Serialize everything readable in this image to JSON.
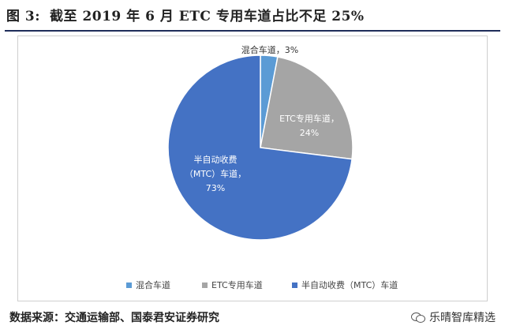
{
  "figure": {
    "label": "图 3:",
    "title": "截至 2019 年 6 月 ETC 专用车道占比不足 25%",
    "source": "数据来源：交通运输部、国泰君安证券研究",
    "watermark": "乐晴智库精选",
    "watermark_icon": "wechat-icon"
  },
  "chart_data": {
    "type": "pie",
    "title": "",
    "categories": [
      "混合车道",
      "ETC专用车道",
      "半自动收费（MTC）车道"
    ],
    "values": [
      3,
      24,
      73
    ],
    "data_labels": [
      [
        "混合车道，3%"
      ],
      [
        "ETC专用车道，",
        "24%"
      ],
      [
        "半自动收费",
        "（MTC）车道，",
        "73%"
      ]
    ],
    "colors": [
      "#5b9bd5",
      "#a5a5a5",
      "#4472c4"
    ],
    "start_angle": "12 o'clock",
    "direction": "clockwise",
    "legend": {
      "position": "bottom",
      "items": [
        "混合车道",
        "ETC专用车道",
        "半自动收费（MTC）车道"
      ]
    }
  }
}
